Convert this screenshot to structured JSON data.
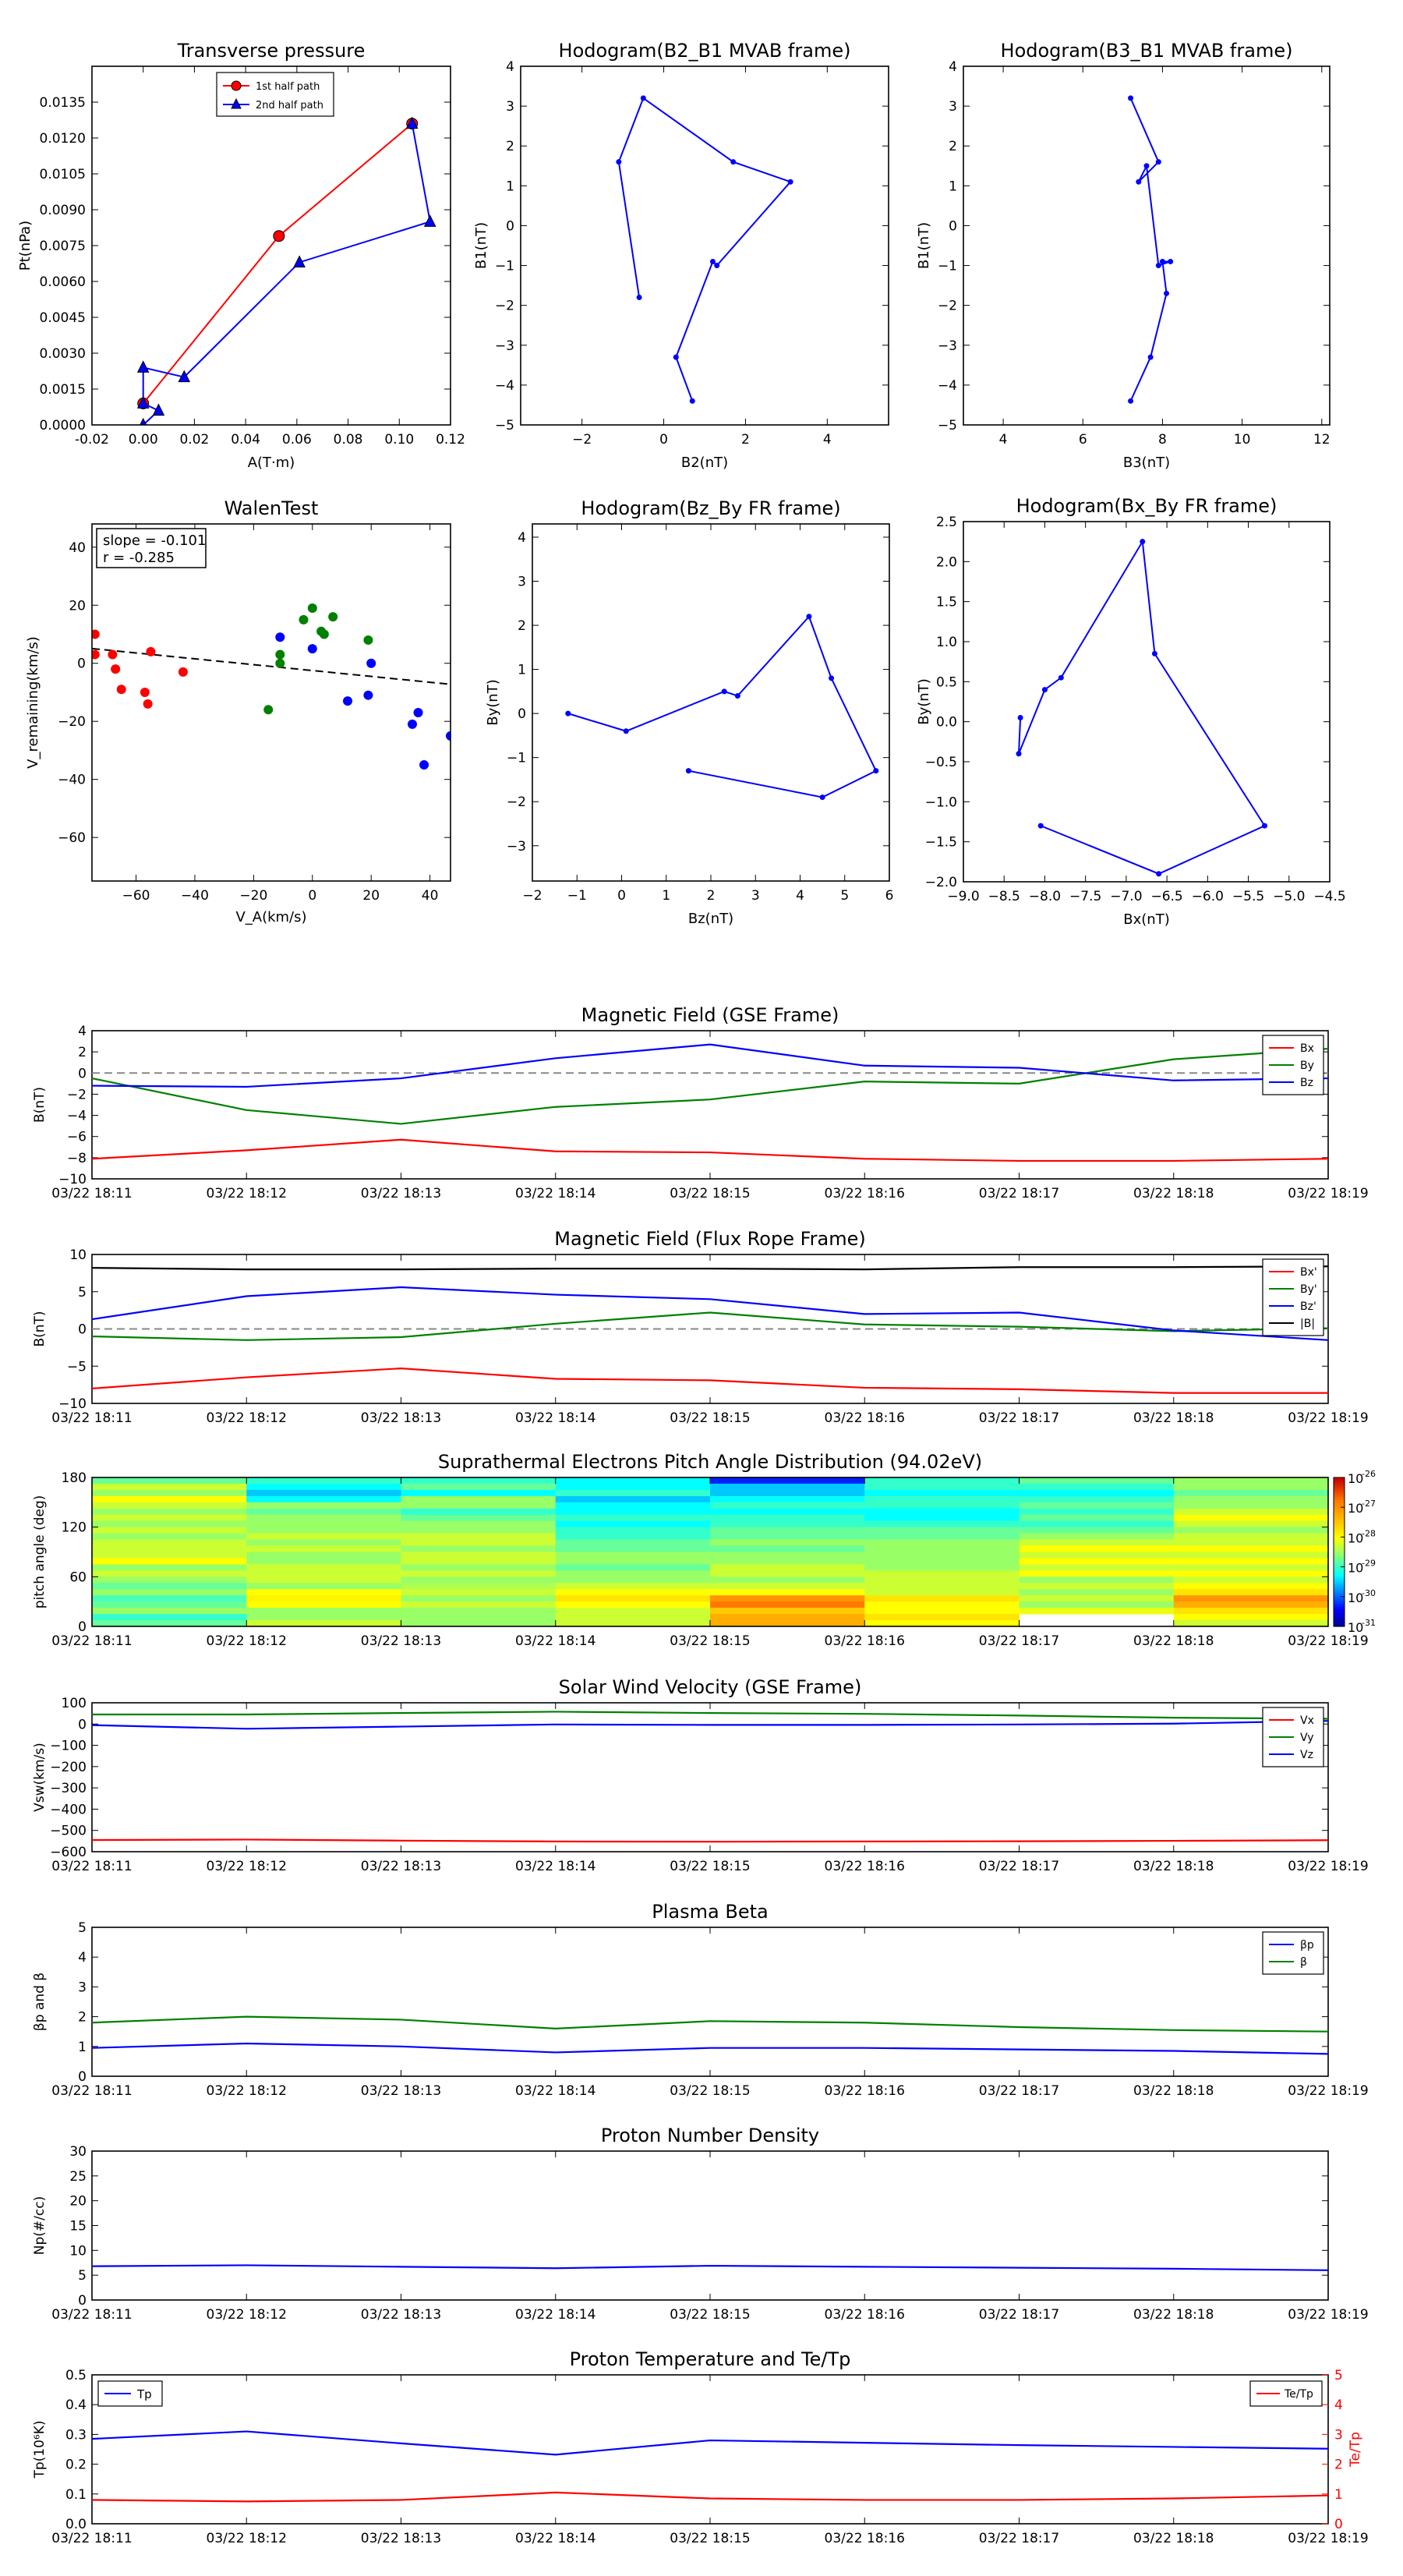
{
  "chart_data": [
    {
      "id": "transverse",
      "type": "line",
      "title": "Transverse pressure",
      "xlabel": "A(T·m)",
      "ylabel": "Pt(nPa)",
      "xlim": [
        -0.02,
        0.12
      ],
      "ylim": [
        0,
        0.015
      ],
      "xticks": [
        "-0.02",
        "0.00",
        "0.02",
        "0.04",
        "0.06",
        "0.08",
        "0.10",
        "0.12"
      ],
      "yticks": [
        "0.0000",
        "0.0015",
        "0.0030",
        "0.0045",
        "0.0060",
        "0.0075",
        "0.0090",
        "0.0105",
        "0.0120",
        "0.0135"
      ],
      "legend": "top-center",
      "series": [
        {
          "name": "1st half path",
          "color": "#ff0000",
          "marker": "circle",
          "x": [
            0.0,
            0.053,
            0.105
          ],
          "y": [
            0.0009,
            0.0079,
            0.0126
          ]
        },
        {
          "name": "2nd half path",
          "color": "#0000ff",
          "marker": "triangle",
          "x": [
            0.105,
            0.112,
            0.061,
            0.016,
            0.0,
            0.0,
            0.006,
            0.0
          ],
          "y": [
            0.0126,
            0.0085,
            0.0068,
            0.002,
            0.0024,
            0.0009,
            0.0006,
            0.0
          ]
        }
      ]
    },
    {
      "id": "hodo_b2b1",
      "type": "line",
      "title": "Hodogram(B2_B1 MVAB frame)",
      "xlabel": "B2(nT)",
      "ylabel": "B1(nT)",
      "xlim": [
        -3.5,
        5.5
      ],
      "ylim": [
        -5,
        4
      ],
      "xticks": [
        "−2",
        "0",
        "2",
        "4"
      ],
      "yticks": [
        "−5",
        "−4",
        "−3",
        "−2",
        "−1",
        "0",
        "1",
        "2",
        "3",
        "4"
      ],
      "series": [
        {
          "color": "#0000ff",
          "marker": "dot",
          "x": [
            -0.6,
            -1.1,
            -0.5,
            1.7,
            3.1,
            1.3,
            1.2,
            0.3,
            0.7
          ],
          "y": [
            -1.8,
            1.6,
            3.2,
            1.6,
            1.1,
            -1.0,
            -0.9,
            -3.3,
            -4.4
          ]
        }
      ]
    },
    {
      "id": "hodo_b3b1",
      "type": "line",
      "title": "Hodogram(B3_B1 MVAB frame)",
      "xlabel": "B3(nT)",
      "ylabel": "B1(nT)",
      "xlim": [
        3,
        12.2
      ],
      "ylim": [
        -5,
        4
      ],
      "xticks": [
        "4",
        "6",
        "8",
        "10",
        "12"
      ],
      "yticks": [
        "−5",
        "−4",
        "−3",
        "−2",
        "−1",
        "0",
        "1",
        "2",
        "3",
        "4"
      ],
      "series": [
        {
          "color": "#0000ff",
          "marker": "dot",
          "x": [
            7.2,
            7.9,
            7.4,
            7.6,
            7.9,
            8.2,
            8.0,
            8.1,
            7.7,
            7.2
          ],
          "y": [
            3.2,
            1.6,
            1.1,
            1.5,
            -1.0,
            -0.9,
            -0.9,
            -1.7,
            -3.3,
            -4.4
          ]
        }
      ]
    },
    {
      "id": "walen",
      "type": "scatter",
      "title": "WalenTest",
      "xlabel": "V_A(km/s)",
      "ylabel": "V_remaining(km/s)",
      "xlim": [
        -75,
        47
      ],
      "ylim": [
        -75,
        48
      ],
      "xticks": [
        "−60",
        "−40",
        "−20",
        "0",
        "20",
        "40"
      ],
      "yticks": [
        "−60",
        "−40",
        "−20",
        "0",
        "20",
        "40"
      ],
      "annotation": [
        "slope = -0.101",
        "r = -0.285"
      ],
      "fit": {
        "slope": -0.101,
        "intercept": -2.5
      },
      "series": [
        {
          "color": "#ff0000",
          "x": [
            -74,
            -74,
            -68,
            -67,
            -65,
            -57,
            -56,
            -55,
            -44
          ],
          "y": [
            10,
            3,
            3,
            -2,
            -9,
            -10,
            -14,
            4,
            -3
          ]
        },
        {
          "color": "#008000",
          "x": [
            -15,
            -11,
            -11,
            -3,
            0,
            3,
            4,
            7,
            19
          ],
          "y": [
            -16,
            0,
            3,
            15,
            19,
            11,
            10,
            16,
            8
          ]
        },
        {
          "color": "#0000ff",
          "x": [
            -11,
            0,
            12,
            19,
            20,
            34,
            36,
            38,
            47
          ],
          "y": [
            9,
            5,
            -13,
            -11,
            0,
            -21,
            -17,
            -35,
            -25
          ]
        }
      ]
    },
    {
      "id": "hodo_bzby",
      "type": "line",
      "title": "Hodogram(Bz_By FR frame)",
      "xlabel": "Bz(nT)",
      "ylabel": "By(nT)",
      "xlim": [
        -2,
        6
      ],
      "ylim": [
        -3.8,
        4.3
      ],
      "xticks": [
        "−2",
        "−1",
        "0",
        "1",
        "2",
        "3",
        "4",
        "5",
        "6"
      ],
      "yticks": [
        "−3",
        "−2",
        "−1",
        "0",
        "1",
        "2",
        "3",
        "4"
      ],
      "series": [
        {
          "color": "#0000ff",
          "marker": "dot",
          "x": [
            -1.2,
            0.1,
            2.3,
            2.6,
            4.2,
            4.7,
            5.7,
            4.5,
            1.5
          ],
          "y": [
            0.0,
            -0.4,
            0.5,
            0.4,
            2.2,
            0.8,
            -1.3,
            -1.9,
            -1.3
          ]
        }
      ]
    },
    {
      "id": "hodo_bxby",
      "type": "line",
      "title": "Hodogram(Bx_By FR frame)",
      "xlabel": "Bx(nT)",
      "ylabel": "By(nT)",
      "xlim": [
        -9,
        -4.5
      ],
      "ylim": [
        -2.0,
        2.5
      ],
      "xticks": [
        "−9.0",
        "−8.5",
        "−8.0",
        "−7.5",
        "−7.0",
        "−6.5",
        "−6.0",
        "−5.5",
        "−5.0",
        "−4.5"
      ],
      "yticks": [
        "−2.0",
        "−1.5",
        "−1.0",
        "−0.5",
        "0.0",
        "0.5",
        "1.0",
        "1.5",
        "2.0",
        "2.5"
      ],
      "series": [
        {
          "color": "#0000ff",
          "marker": "dot",
          "x": [
            -8.3,
            -8.32,
            -8.0,
            -7.8,
            -6.8,
            -6.65,
            -5.3,
            -6.6,
            -8.05
          ],
          "y": [
            0.05,
            -0.4,
            0.4,
            0.55,
            2.25,
            0.85,
            -1.3,
            -1.9,
            -1.3
          ]
        }
      ]
    },
    {
      "id": "mag_gse",
      "type": "line",
      "title": "Magnetic Field (GSE Frame)",
      "ylabel": "B(nT)",
      "ylim": [
        -10,
        4
      ],
      "yticks": [
        "−10",
        "−8",
        "−6",
        "−4",
        "−2",
        "0",
        "2",
        "4"
      ],
      "categories": [
        "03/22 18:11",
        "03/22 18:12",
        "03/22 18:13",
        "03/22 18:14",
        "03/22 18:15",
        "03/22 18:16",
        "03/22 18:17",
        "03/22 18:18",
        "03/22 18:19"
      ],
      "zero_line": true,
      "legend": "top-right",
      "series": [
        {
          "name": "Bx",
          "color": "#ff0000",
          "values": [
            -8.1,
            -7.3,
            -6.3,
            -7.4,
            -7.5,
            -8.1,
            -8.3,
            -8.3,
            -8.1
          ]
        },
        {
          "name": "By",
          "color": "#008000",
          "values": [
            -0.5,
            -3.5,
            -4.8,
            -3.2,
            -2.5,
            -0.8,
            -1.0,
            1.3,
            2.3
          ]
        },
        {
          "name": "Bz",
          "color": "#0000ff",
          "values": [
            -1.2,
            -1.3,
            -0.5,
            1.4,
            2.7,
            0.7,
            0.5,
            -0.7,
            -0.5
          ]
        }
      ]
    },
    {
      "id": "mag_fr",
      "type": "line",
      "title": "Magnetic Field (Flux Rope Frame)",
      "ylabel": "B(nT)",
      "ylim": [
        -10,
        10
      ],
      "yticks": [
        "−10",
        "−5",
        "0",
        "5",
        "10"
      ],
      "categories": [
        "03/22 18:11",
        "03/22 18:12",
        "03/22 18:13",
        "03/22 18:14",
        "03/22 18:15",
        "03/22 18:16",
        "03/22 18:17",
        "03/22 18:18",
        "03/22 18:19"
      ],
      "zero_line": true,
      "legend": "top-right",
      "series": [
        {
          "name": "Bx'",
          "color": "#ff0000",
          "values": [
            -8.0,
            -6.5,
            -5.3,
            -6.7,
            -6.9,
            -7.9,
            -8.1,
            -8.6,
            -8.6
          ]
        },
        {
          "name": "By'",
          "color": "#008000",
          "values": [
            -1.0,
            -1.5,
            -1.1,
            0.7,
            2.2,
            0.6,
            0.3,
            -0.3,
            0.1
          ]
        },
        {
          "name": "Bz'",
          "color": "#0000ff",
          "values": [
            1.3,
            4.4,
            5.6,
            4.6,
            4.0,
            2.0,
            2.2,
            -0.2,
            -1.5
          ]
        },
        {
          "name": "|B|",
          "color": "#000000",
          "values": [
            8.2,
            8.0,
            8.0,
            8.1,
            8.1,
            8.0,
            8.3,
            8.3,
            8.4
          ]
        }
      ]
    },
    {
      "id": "pad",
      "type": "heatmap",
      "title": "Suprathermal Electrons Pitch Angle Distribution (94.02eV)",
      "ylabel": "pitch angle (deg)",
      "ylim": [
        0,
        180
      ],
      "yticks": [
        "0",
        "60",
        "120",
        "180"
      ],
      "categories": [
        "03/22 18:11",
        "03/22 18:12",
        "03/22 18:13",
        "03/22 18:14",
        "03/22 18:15",
        "03/22 18:16",
        "03/22 18:17",
        "03/22 18:18",
        "03/22 18:19"
      ],
      "colorbar_ticks": [
        "10",
        "10",
        "10",
        "10",
        "10",
        "10"
      ],
      "colorbar_exponents": [
        "-26",
        "-27",
        "-28",
        "-29",
        "-30",
        "-31"
      ],
      "rows": 24,
      "columns": [
        [
          0.45,
          0.55,
          0.5,
          0.6,
          0.55,
          0.5,
          0.55,
          0.5,
          0.55,
          0.5,
          0.55,
          0.55,
          0.55,
          0.6,
          0.5,
          0.55,
          0.5,
          0.45,
          0.5,
          0.42,
          0.45,
          0.5,
          0.4,
          0.45
        ],
        [
          0.4,
          0.35,
          0.3,
          0.35,
          0.5,
          0.45,
          0.5,
          0.5,
          0.5,
          0.55,
          0.5,
          0.55,
          0.5,
          0.5,
          0.55,
          0.55,
          0.55,
          0.5,
          0.6,
          0.62,
          0.6,
          0.5,
          0.5,
          0.55
        ],
        [
          0.4,
          0.45,
          0.35,
          0.5,
          0.5,
          0.4,
          0.45,
          0.5,
          0.5,
          0.55,
          0.55,
          0.5,
          0.55,
          0.55,
          0.5,
          0.55,
          0.5,
          0.52,
          0.55,
          0.5,
          0.55,
          0.5,
          0.5,
          0.5
        ],
        [
          0.35,
          0.35,
          0.4,
          0.3,
          0.35,
          0.35,
          0.4,
          0.35,
          0.4,
          0.4,
          0.45,
          0.45,
          0.5,
          0.5,
          0.45,
          0.5,
          0.5,
          0.55,
          0.6,
          0.65,
          0.6,
          0.55,
          0.55,
          0.55
        ],
        [
          0.15,
          0.3,
          0.3,
          0.35,
          0.4,
          0.35,
          0.4,
          0.4,
          0.45,
          0.45,
          0.5,
          0.45,
          0.5,
          0.5,
          0.55,
          0.55,
          0.5,
          0.55,
          0.6,
          0.8,
          0.85,
          0.7,
          0.75,
          0.75
        ],
        [
          0.4,
          0.4,
          0.35,
          0.4,
          0.4,
          0.35,
          0.35,
          0.4,
          0.45,
          0.45,
          0.5,
          0.5,
          0.5,
          0.5,
          0.5,
          0.55,
          0.55,
          0.55,
          0.55,
          0.65,
          0.6,
          0.6,
          0.65,
          0.6
        ],
        [
          0.45,
          0.4,
          0.35,
          0.4,
          0.45,
          0.4,
          0.45,
          0.4,
          0.45,
          0.5,
          0.55,
          0.6,
          0.55,
          0.6,
          0.55,
          0.6,
          0.5,
          0.55,
          0.5,
          0.55,
          0.5,
          0.58,
          null,
          null
        ],
        [
          0.5,
          0.5,
          0.45,
          0.5,
          0.5,
          0.55,
          0.6,
          0.55,
          0.5,
          0.55,
          0.55,
          0.6,
          0.55,
          0.6,
          0.55,
          0.6,
          0.55,
          0.6,
          0.65,
          0.8,
          0.75,
          0.65,
          0.6,
          0.55
        ]
      ]
    },
    {
      "id": "vsw",
      "type": "line",
      "title": "Solar Wind Velocity (GSE Frame)",
      "ylabel": "Vsw(km/s)",
      "ylim": [
        -600,
        100
      ],
      "yticks": [
        "−600",
        "−500",
        "−400",
        "−300",
        "−200",
        "−100",
        "0",
        "100"
      ],
      "categories": [
        "03/22 18:11",
        "03/22 18:12",
        "03/22 18:13",
        "03/22 18:14",
        "03/22 18:15",
        "03/22 18:16",
        "03/22 18:17",
        "03/22 18:18",
        "03/22 18:19"
      ],
      "legend": "top-right",
      "series": [
        {
          "name": "Vx",
          "color": "#ff0000",
          "values": [
            -545,
            -543,
            -548,
            -552,
            -553,
            -552,
            -551,
            -549,
            -546
          ]
        },
        {
          "name": "Vy",
          "color": "#008000",
          "values": [
            45,
            45,
            52,
            58,
            52,
            48,
            40,
            30,
            25
          ]
        },
        {
          "name": "Vz",
          "color": "#0000ff",
          "values": [
            -5,
            -22,
            -12,
            -2,
            -4,
            -4,
            -2,
            2,
            15
          ]
        }
      ]
    },
    {
      "id": "beta",
      "type": "line",
      "title": "Plasma Beta",
      "ylabel": "βp and β",
      "ylim": [
        0,
        5
      ],
      "yticks": [
        "0",
        "1",
        "2",
        "3",
        "4",
        "5"
      ],
      "categories": [
        "03/22 18:11",
        "03/22 18:12",
        "03/22 18:13",
        "03/22 18:14",
        "03/22 18:15",
        "03/22 18:16",
        "03/22 18:17",
        "03/22 18:18",
        "03/22 18:19"
      ],
      "legend": "top-right",
      "series": [
        {
          "name": "βp",
          "color": "#0000ff",
          "values": [
            0.95,
            1.1,
            1.0,
            0.8,
            0.95,
            0.95,
            0.9,
            0.85,
            0.75
          ]
        },
        {
          "name": "β",
          "color": "#008000",
          "values": [
            1.8,
            2.0,
            1.9,
            1.6,
            1.85,
            1.8,
            1.65,
            1.55,
            1.5
          ]
        }
      ]
    },
    {
      "id": "np",
      "type": "line",
      "title": "Proton Number Density",
      "ylabel": "Np(#/cc)",
      "ylim": [
        0,
        30
      ],
      "yticks": [
        "0",
        "5",
        "10",
        "15",
        "20",
        "25",
        "30"
      ],
      "categories": [
        "03/22 18:11",
        "03/22 18:12",
        "03/22 18:13",
        "03/22 18:14",
        "03/22 18:15",
        "03/22 18:16",
        "03/22 18:17",
        "03/22 18:18",
        "03/22 18:19"
      ],
      "series": [
        {
          "color": "#0000ff",
          "values": [
            6.8,
            7.0,
            6.7,
            6.4,
            6.9,
            6.7,
            6.5,
            6.3,
            6.0
          ]
        }
      ]
    },
    {
      "id": "tp",
      "type": "line",
      "title": "Proton Temperature and Te/Tp",
      "ylabel": "Tp(10⁶K)",
      "ylabel_right": "Te/Tp",
      "ylim": [
        0,
        0.5
      ],
      "ylim_right": [
        0,
        5
      ],
      "yticks": [
        "0.0",
        "0.1",
        "0.2",
        "0.3",
        "0.4",
        "0.5"
      ],
      "yticks_right": [
        "0",
        "1",
        "2",
        "3",
        "4",
        "5"
      ],
      "categories": [
        "03/22 18:11",
        "03/22 18:12",
        "03/22 18:13",
        "03/22 18:14",
        "03/22 18:15",
        "03/22 18:16",
        "03/22 18:17",
        "03/22 18:18",
        "03/22 18:19"
      ],
      "series": [
        {
          "name": "Tp",
          "color": "#0000ff",
          "axis": "left",
          "values": [
            0.285,
            0.31,
            0.27,
            0.232,
            0.28,
            0.272,
            0.264,
            0.258,
            0.252
          ]
        },
        {
          "name": "Te/Tp",
          "color": "#ff0000",
          "axis": "right",
          "values": [
            0.8,
            0.75,
            0.8,
            1.05,
            0.85,
            0.8,
            0.8,
            0.85,
            0.95
          ]
        }
      ]
    }
  ]
}
